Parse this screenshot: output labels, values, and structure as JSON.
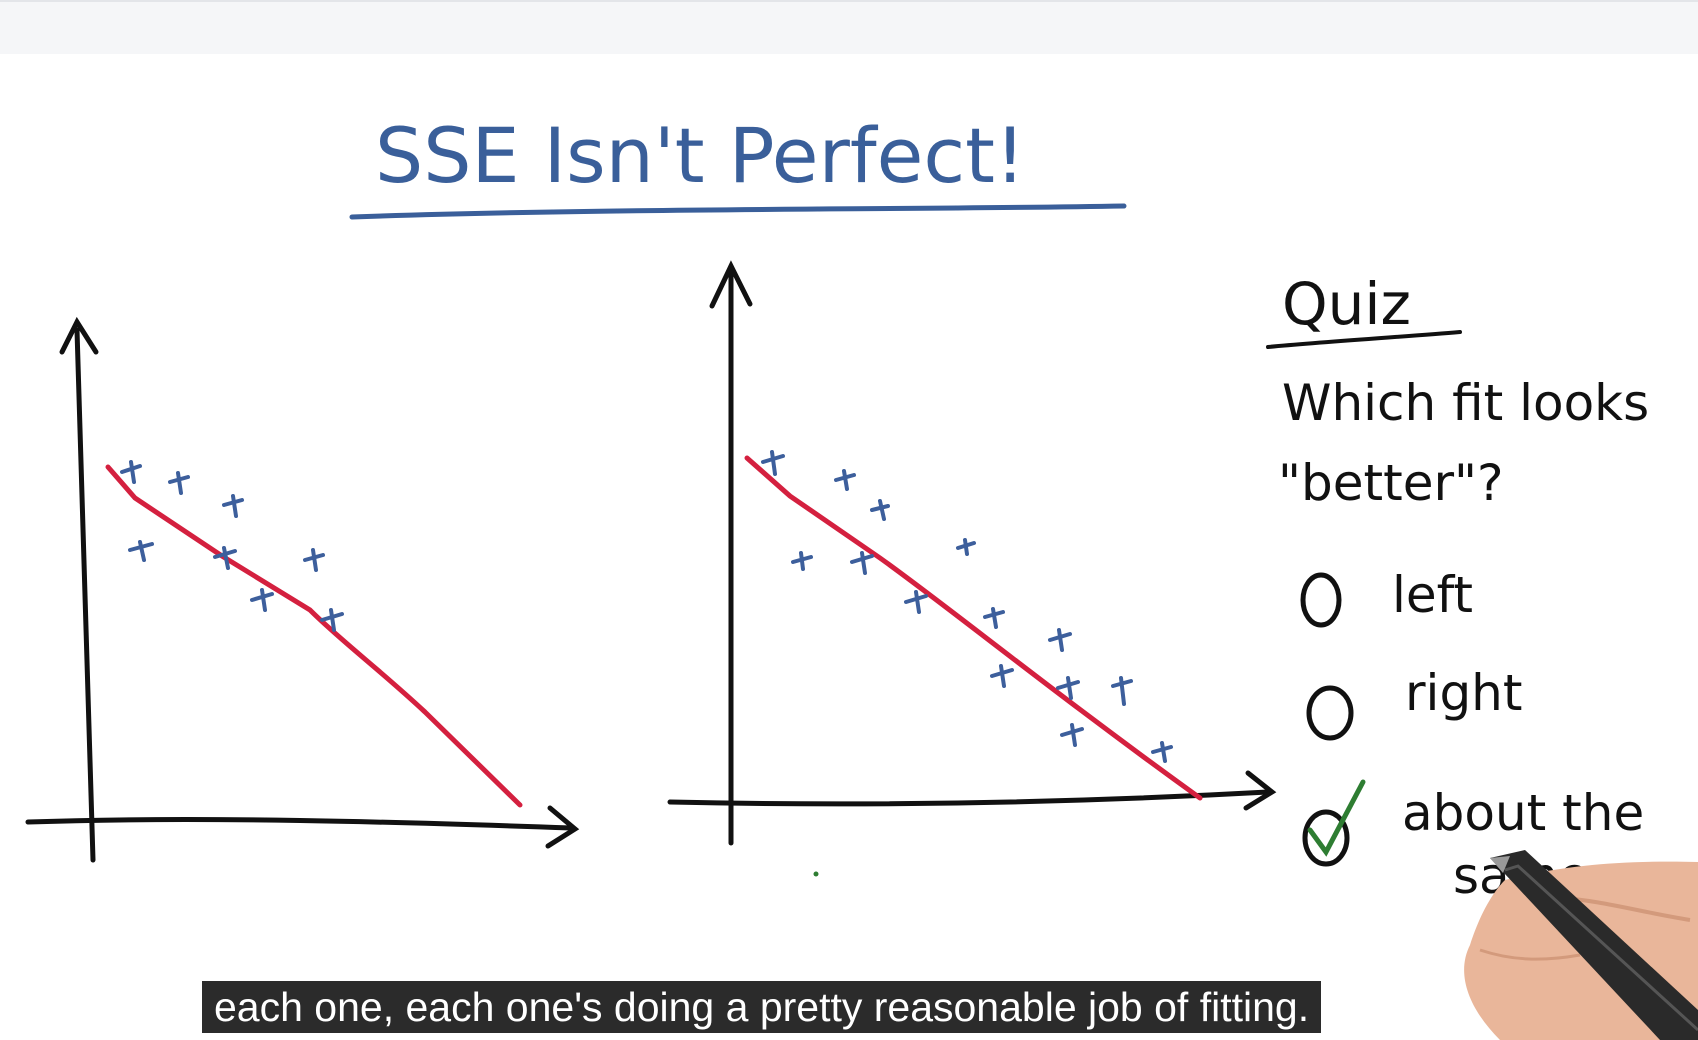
{
  "slide": {
    "title": "SSE Isn't Perfect!",
    "quiz_label": "Quiz",
    "question_line1": "Which fit looks",
    "question_line2": "\"better\"?",
    "options": [
      {
        "label": "left",
        "checked": false
      },
      {
        "label": "right",
        "checked": false
      },
      {
        "label": "about the",
        "label2": "same",
        "checked": true
      }
    ]
  },
  "caption": "each one, each one's doing a pretty reasonable job of fitting.",
  "colors": {
    "title_blue": "#3a5f9a",
    "points_blue": "#3d5f9c",
    "fit_red": "#d4203f",
    "check_green": "#2e7d32",
    "ink": "#111111"
  },
  "icons": [
    "radio-empty-icon",
    "radio-empty-icon",
    "checkmark-icon",
    "pen-hand-icon"
  ]
}
